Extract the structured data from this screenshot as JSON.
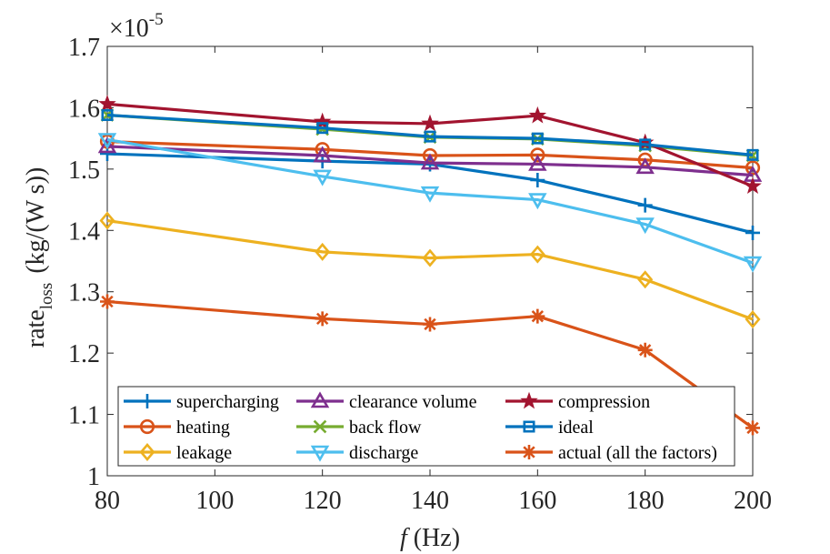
{
  "chart_data": {
    "type": "line",
    "title": "",
    "xlabel_italic": "f",
    "xlabel_rest": " (Hz)",
    "ylabel_main": "rate",
    "ylabel_sub": "loss",
    "ylabel_unit": "(kg/(W s))",
    "exponent_base": "×10",
    "exponent_power": "-5",
    "x": [
      80,
      120,
      140,
      160,
      180,
      200
    ],
    "xlim": [
      80,
      200
    ],
    "ylim": [
      1.0,
      1.7
    ],
    "xticks": [
      80,
      100,
      120,
      140,
      160,
      180,
      200
    ],
    "xtick_labels": [
      "80",
      "100",
      "120",
      "140",
      "160",
      "180",
      "200"
    ],
    "yticks": [
      1.0,
      1.1,
      1.2,
      1.3,
      1.4,
      1.5,
      1.6,
      1.7
    ],
    "ytick_labels": [
      "1",
      "1.1",
      "1.2",
      "1.3",
      "1.4",
      "1.5",
      "1.6",
      "1.7"
    ],
    "grid": false,
    "legend_position": "bottom",
    "series": [
      {
        "name": "supercharging",
        "color": "#0072BD",
        "marker": "plus",
        "values": [
          1.525,
          1.513,
          1.508,
          1.482,
          1.441,
          1.396
        ]
      },
      {
        "name": "heating",
        "color": "#D95319",
        "marker": "circle",
        "values": [
          1.545,
          1.532,
          1.522,
          1.523,
          1.515,
          1.502
        ]
      },
      {
        "name": "leakage",
        "color": "#EDB120",
        "marker": "diamond",
        "values": [
          1.416,
          1.365,
          1.355,
          1.361,
          1.32,
          1.255
        ]
      },
      {
        "name": "clearance volume",
        "color": "#7E2F8E",
        "marker": "triangle-up",
        "values": [
          1.537,
          1.522,
          1.51,
          1.508,
          1.503,
          1.49
        ]
      },
      {
        "name": "back flow",
        "color": "#77AC30",
        "marker": "x",
        "values": [
          1.588,
          1.565,
          1.552,
          1.549,
          1.538,
          1.522
        ]
      },
      {
        "name": "discharge",
        "color": "#4DBEEE",
        "marker": "triangle-down",
        "values": [
          1.548,
          1.488,
          1.461,
          1.45,
          1.41,
          1.347
        ]
      },
      {
        "name": "compression",
        "color": "#A2142F",
        "marker": "star",
        "values": [
          1.606,
          1.577,
          1.574,
          1.587,
          1.543,
          1.472
        ]
      },
      {
        "name": "ideal",
        "color": "#0072BD",
        "marker": "square",
        "values": [
          1.588,
          1.567,
          1.553,
          1.55,
          1.54,
          1.523
        ]
      },
      {
        "name": "actual (all the factors)",
        "color": "#D95319",
        "marker": "asterisk",
        "values": [
          1.284,
          1.256,
          1.247,
          1.26,
          1.205,
          1.078
        ]
      }
    ]
  }
}
